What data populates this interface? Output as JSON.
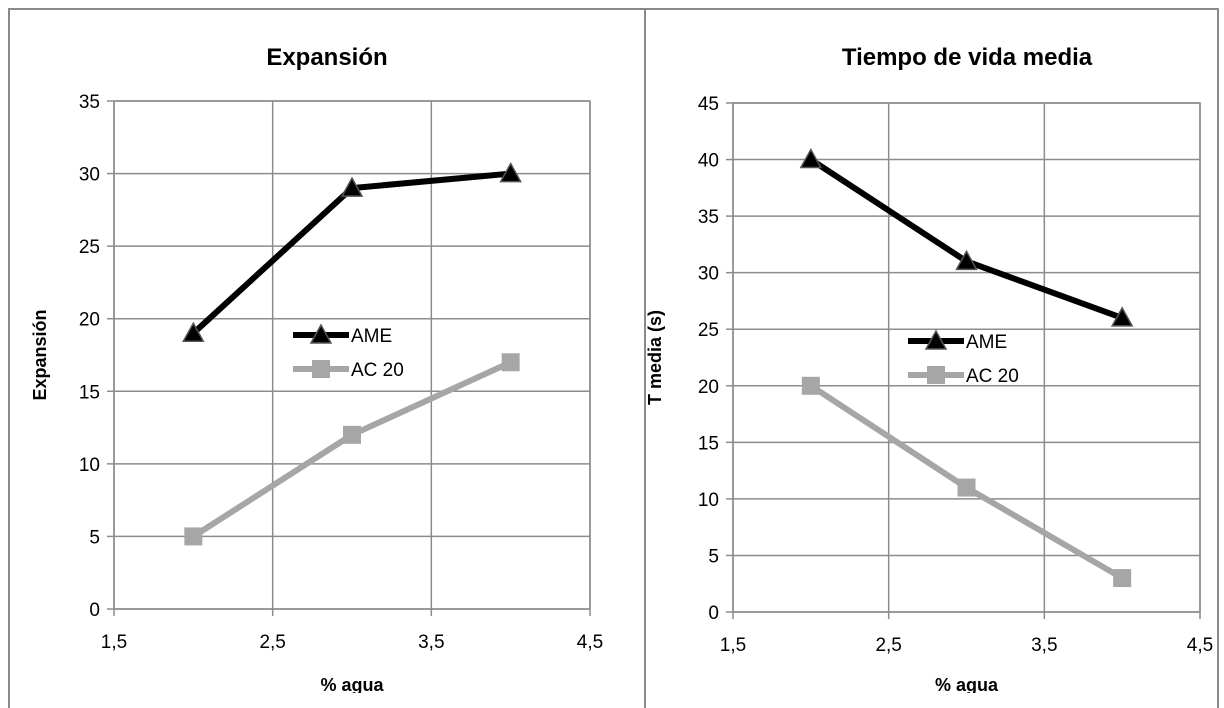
{
  "chart_data": [
    {
      "type": "line",
      "title": "Expansión",
      "xlabel": "% agua",
      "ylabel": "Expansión",
      "xlim": [
        1.5,
        4.5
      ],
      "ylim": [
        0,
        35
      ],
      "xticks": [
        "1,5",
        "2,5",
        "3,5",
        "4,5"
      ],
      "yticks": [
        "0",
        "5",
        "10",
        "15",
        "20",
        "25",
        "30",
        "35"
      ],
      "grid": true,
      "legend_position": "center",
      "series": [
        {
          "name": "AME",
          "color": "#000000",
          "marker": "triangle",
          "x": [
            2,
            3,
            4
          ],
          "values": [
            19,
            29,
            30
          ]
        },
        {
          "name": "AC 20",
          "color": "#a6a6a6",
          "marker": "square",
          "x": [
            2,
            3,
            4
          ],
          "values": [
            5,
            12,
            17
          ]
        }
      ]
    },
    {
      "type": "line",
      "title": "Tiempo de vida media",
      "xlabel": "% agua",
      "ylabel": "T media (s)",
      "xlim": [
        1.5,
        4.5
      ],
      "ylim": [
        0,
        45
      ],
      "xticks": [
        "1,5",
        "2,5",
        "3,5",
        "4,5"
      ],
      "yticks": [
        "0",
        "5",
        "10",
        "15",
        "20",
        "25",
        "30",
        "35",
        "40",
        "45"
      ],
      "grid": true,
      "legend_position": "center",
      "series": [
        {
          "name": "AME",
          "color": "#000000",
          "marker": "triangle",
          "x": [
            2,
            3,
            4
          ],
          "values": [
            40,
            31,
            26
          ]
        },
        {
          "name": "AC 20",
          "color": "#a6a6a6",
          "marker": "square",
          "x": [
            2,
            3,
            4
          ],
          "values": [
            20,
            11,
            3
          ]
        }
      ]
    }
  ]
}
